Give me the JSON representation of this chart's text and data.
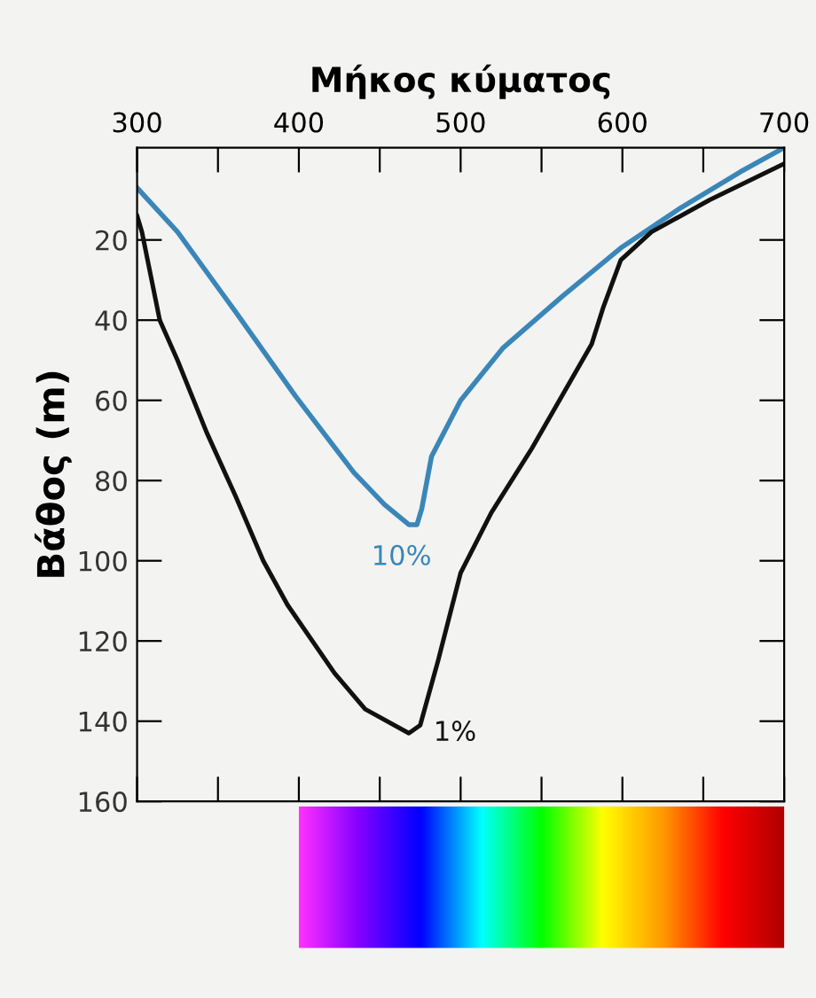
{
  "chart_data": {
    "type": "line",
    "xlabel": "Μήκος κύματος",
    "ylabel": "Βάθος (m)",
    "xlim": [
      300,
      700
    ],
    "ylim": [
      160,
      -3
    ],
    "xticks": [
      300,
      {
        "value": 350,
        "label": null
      },
      400,
      {
        "value": 450,
        "label": null
      },
      500,
      {
        "value": 550,
        "label": null
      },
      600,
      {
        "value": 650,
        "label": null
      },
      700
    ],
    "yticks": [
      20,
      40,
      60,
      80,
      100,
      120,
      140,
      160
    ],
    "grid": false,
    "legend": false,
    "marker": "none",
    "line_style": "solid",
    "series": [
      {
        "name": "10%",
        "color": "#3a86b8",
        "x": [
          300,
          325,
          361,
          398,
          434,
          453,
          468,
          473,
          476,
          482,
          500,
          526,
          563,
          599,
          636,
          673,
          700
        ],
        "values": [
          7,
          18,
          38,
          59,
          78,
          86,
          91,
          91,
          87,
          74,
          60,
          47,
          34,
          22,
          12,
          3,
          -3
        ]
      },
      {
        "name": "1%",
        "color": "#111111",
        "x": [
          300,
          303,
          314,
          325,
          343,
          361,
          378,
          393,
          422,
          441,
          468,
          475,
          486,
          500,
          519,
          544,
          581,
          588,
          599,
          618,
          654,
          700
        ],
        "values": [
          14,
          18,
          40,
          50,
          68,
          84,
          100,
          111,
          128,
          137,
          143,
          141,
          125,
          103,
          88,
          72,
          46,
          37,
          25,
          18,
          10,
          1
        ]
      }
    ]
  }
}
